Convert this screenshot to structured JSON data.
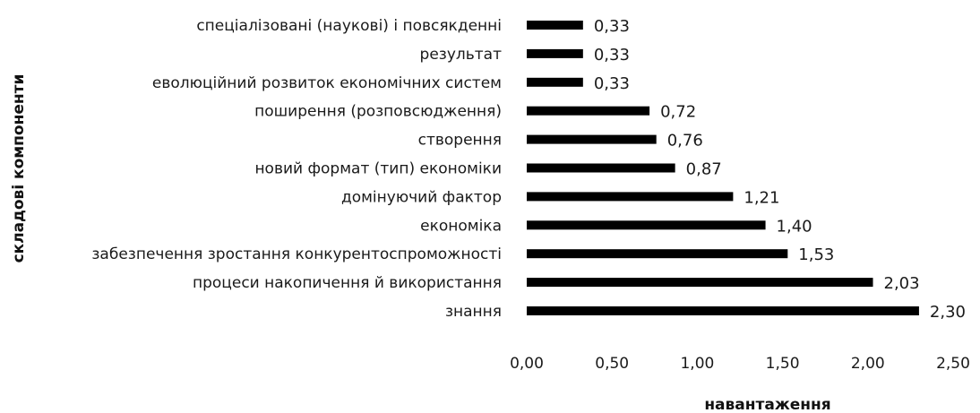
{
  "chart_data": {
    "type": "bar",
    "orientation": "horizontal",
    "categories": [
      "знання",
      "процеси накопичення й використання",
      "забезпечення зростання конкурентоспроможності",
      "економіка",
      "домінуючий фактор",
      "новий формат (тип) економіки",
      "створення",
      "поширення (розповсюдження)",
      "еволюційний розвиток економічних систем",
      "результат",
      "спеціалізовані (наукові) і повсякденні"
    ],
    "values": [
      2.3,
      2.03,
      1.53,
      1.4,
      1.21,
      0.87,
      0.76,
      0.72,
      0.33,
      0.33,
      0.33
    ],
    "value_labels": [
      "2,30",
      "2,03",
      "1,53",
      "1,40",
      "1,21",
      "0,87",
      "0,76",
      "0,72",
      "0,33",
      "0,33",
      "0,33"
    ],
    "xlabel": "навантаження",
    "ylabel": "складові компоненти",
    "xlim": [
      0,
      2.5
    ],
    "x_ticks": [
      "0,00",
      "0,50",
      "1,00",
      "1,50",
      "2,00",
      "2,50"
    ],
    "bar_color": "#000000",
    "grid": false,
    "legend": "none"
  }
}
